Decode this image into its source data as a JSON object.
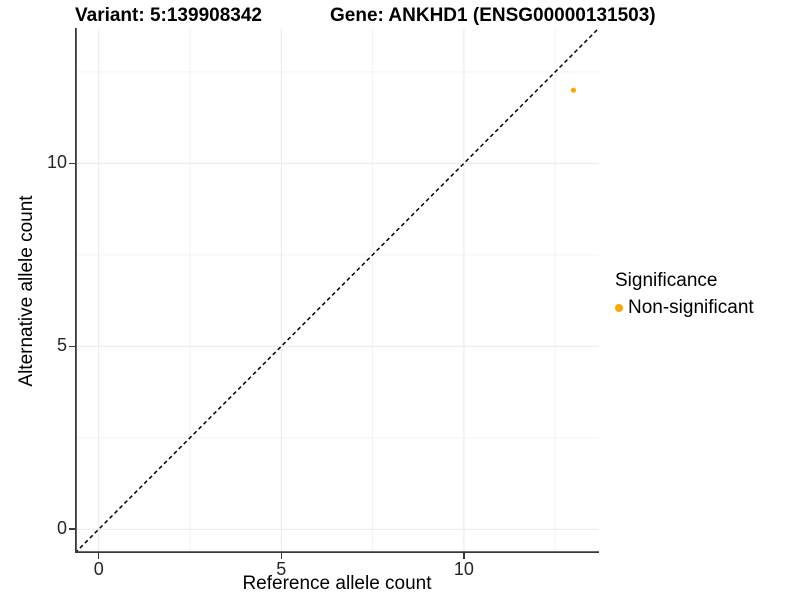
{
  "titles": {
    "left": "Variant: 5:139908342",
    "right": "Gene: ANKHD1 (ENSG00000131503)"
  },
  "chart_data": {
    "type": "scatter",
    "xlabel": "Reference allele count",
    "ylabel": "Alternative allele count",
    "xlim": [
      -0.65,
      13.7
    ],
    "ylim": [
      -0.65,
      13.7
    ],
    "x_ticks": [
      0,
      5,
      10
    ],
    "y_ticks": [
      0,
      5,
      10
    ],
    "x_minor_ticks": [
      2.5,
      7.5,
      12.5
    ],
    "y_minor_ticks": [
      2.5,
      7.5,
      12.5
    ],
    "grid": true,
    "identity_line": {
      "type": "dashed",
      "slope": 1,
      "intercept": 0,
      "color": "#000000"
    },
    "series": [
      {
        "name": "Non-significant",
        "color": "#FFA500",
        "points": [
          {
            "x": 13,
            "y": 12
          }
        ]
      }
    ],
    "legend": {
      "title": "Significance",
      "position": "right",
      "items": [
        {
          "label": "Non-significant",
          "color": "#FFA500"
        }
      ]
    }
  },
  "colors": {
    "background": "#ffffff",
    "axis_line": "#383838",
    "tick_text": "#262626",
    "grid_major": "#e9e9e9",
    "grid_minor": "#f3f3f3",
    "point_orange": "#FFA500"
  }
}
